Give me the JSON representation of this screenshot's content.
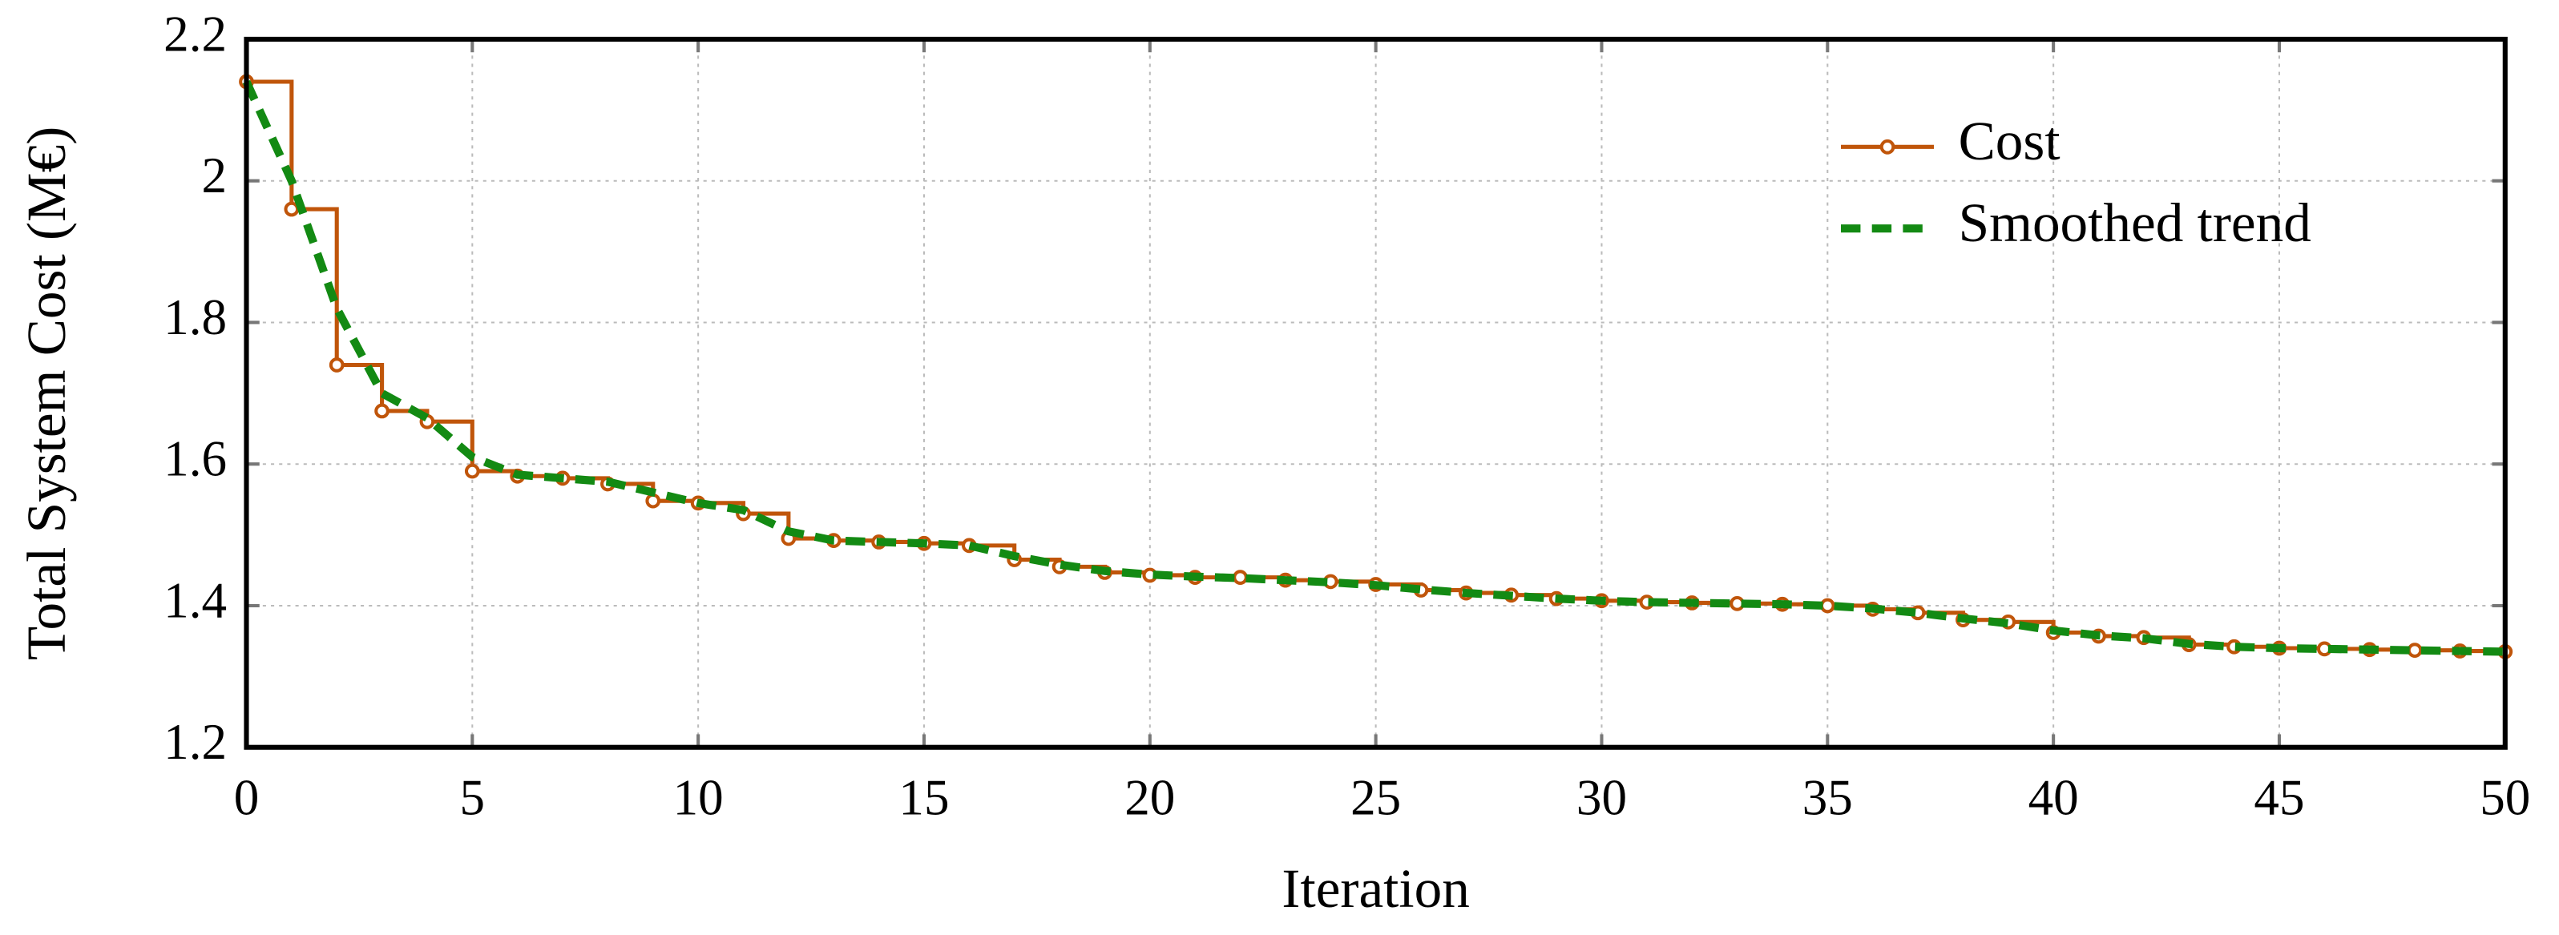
{
  "chart_data": {
    "type": "line",
    "xlabel": "Iteration",
    "ylabel": "Total System Cost (M€)",
    "x": [
      0,
      1,
      2,
      3,
      4,
      5,
      6,
      7,
      8,
      9,
      10,
      11,
      12,
      13,
      14,
      15,
      16,
      17,
      18,
      19,
      20,
      21,
      22,
      23,
      24,
      25,
      26,
      27,
      28,
      29,
      30,
      31,
      32,
      33,
      34,
      35,
      36,
      37,
      38,
      39,
      40,
      41,
      42,
      43,
      44,
      45,
      46,
      47,
      48,
      49,
      50
    ],
    "series": [
      {
        "name": "Cost",
        "color": "#c0550a",
        "drawstyle": "steps-post",
        "marker": true,
        "values": [
          2.14,
          1.96,
          1.74,
          1.675,
          1.66,
          1.59,
          1.583,
          1.58,
          1.572,
          1.548,
          1.545,
          1.53,
          1.495,
          1.492,
          1.49,
          1.488,
          1.485,
          1.465,
          1.455,
          1.447,
          1.443,
          1.44,
          1.44,
          1.436,
          1.434,
          1.43,
          1.422,
          1.418,
          1.415,
          1.41,
          1.407,
          1.405,
          1.404,
          1.403,
          1.402,
          1.4,
          1.395,
          1.39,
          1.38,
          1.377,
          1.362,
          1.357,
          1.355,
          1.345,
          1.342,
          1.34,
          1.339,
          1.338,
          1.337,
          1.336,
          1.335
        ]
      },
      {
        "name": "Smoothed trend",
        "color": "#138a13",
        "drawstyle": "dashed",
        "marker": false,
        "values": [
          2.14,
          2.0,
          1.82,
          1.7,
          1.665,
          1.61,
          1.585,
          1.58,
          1.575,
          1.56,
          1.545,
          1.535,
          1.505,
          1.492,
          1.49,
          1.488,
          1.485,
          1.47,
          1.458,
          1.449,
          1.444,
          1.441,
          1.439,
          1.436,
          1.433,
          1.429,
          1.423,
          1.418,
          1.414,
          1.41,
          1.407,
          1.405,
          1.404,
          1.403,
          1.402,
          1.4,
          1.396,
          1.39,
          1.382,
          1.375,
          1.365,
          1.358,
          1.354,
          1.346,
          1.342,
          1.34,
          1.339,
          1.338,
          1.337,
          1.336,
          1.335
        ]
      }
    ],
    "xlim": [
      0,
      50
    ],
    "xticks": [
      0,
      5,
      10,
      15,
      20,
      25,
      30,
      35,
      40,
      45,
      50
    ],
    "ylim": [
      1.2,
      2.2
    ],
    "yticks": [
      1.2,
      1.4,
      1.6,
      1.8,
      2,
      2.2
    ],
    "grid": true,
    "legend": "upper right"
  }
}
